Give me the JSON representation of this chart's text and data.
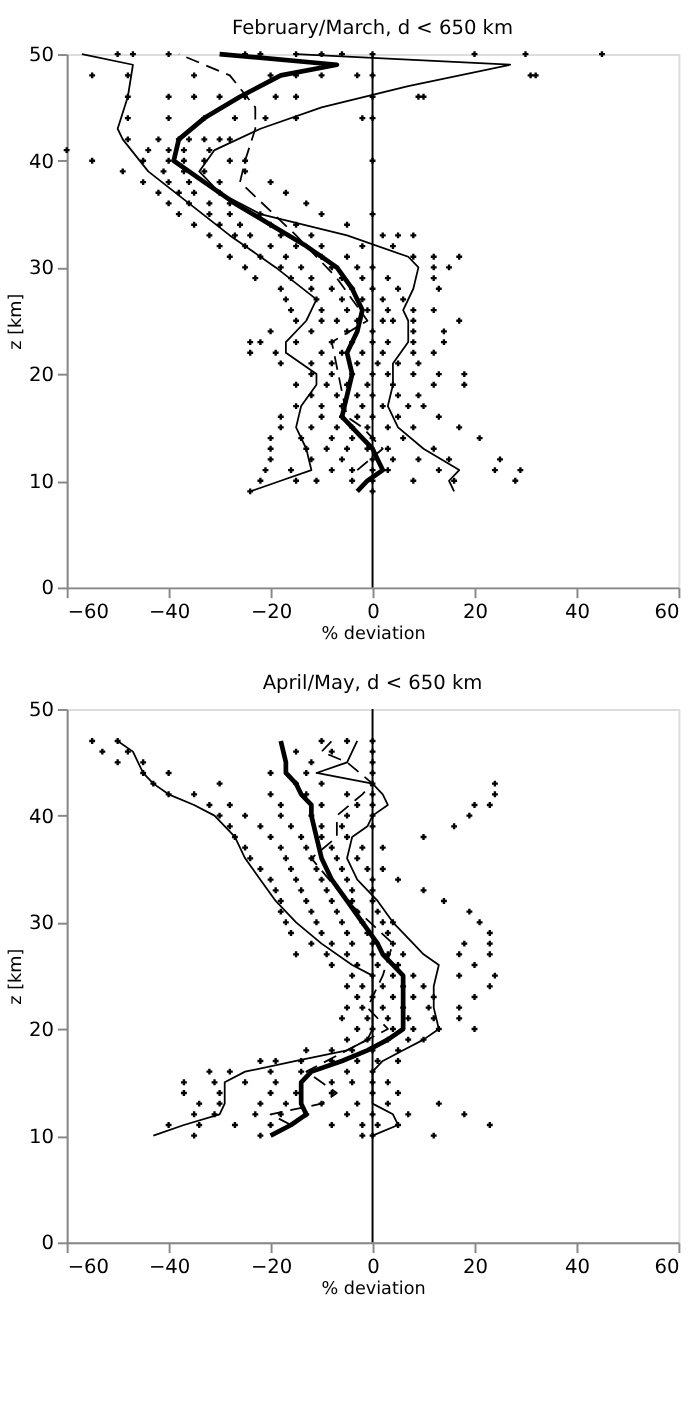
{
  "chart_data": [
    {
      "type": "line",
      "title": "February/March, d < 650 km",
      "xlabel": "% deviation",
      "ylabel": "z [km]",
      "xlim": [
        -60,
        60
      ],
      "ylim": [
        0,
        50
      ],
      "xticks": [
        -60,
        -40,
        -20,
        0,
        20,
        40,
        60
      ],
      "yticks": [
        0,
        10,
        20,
        30,
        40,
        50
      ],
      "grid": false,
      "ref_lines": [
        {
          "axis": "x",
          "value": 0,
          "color": "#000000",
          "line_style": "solid"
        }
      ],
      "series": [
        {
          "type": "scatter",
          "marker": "cross",
          "color": "#000000",
          "x": [
            -50,
            -47,
            -40,
            -25,
            -22,
            -15,
            -10,
            -6,
            0,
            20,
            30,
            45,
            -55,
            -48,
            -35,
            -20,
            -15,
            -10,
            -3,
            0,
            31,
            32,
            -48,
            -40,
            -35,
            -30,
            -25,
            -19,
            -15,
            0,
            9,
            10,
            -48,
            -40,
            -33,
            -27,
            -21,
            -15,
            -2,
            0,
            -48,
            -42,
            -38,
            -36,
            -33,
            -30,
            -28,
            -60,
            -44,
            -40,
            -37,
            -32,
            -55,
            -45,
            -40,
            -37,
            -33,
            -28,
            -25,
            0,
            -49,
            -41,
            -37,
            -33,
            -25,
            -45,
            -40,
            -36,
            -30,
            -20,
            -42,
            -38,
            -35,
            -30,
            -17,
            -40,
            -36,
            -32,
            -28,
            -13,
            -38,
            -32,
            -28,
            -22,
            -10,
            0,
            -35,
            -30,
            -26,
            -20,
            -15,
            -5,
            -32,
            -27,
            -24,
            -18,
            -12,
            2,
            5,
            8,
            -30,
            -25,
            -20,
            -15,
            -10,
            -2,
            4,
            -28,
            -22,
            -17,
            -10,
            -5,
            8,
            12,
            17,
            -25,
            -18,
            -14,
            -8,
            -3,
            0,
            12,
            15,
            -23,
            -16,
            -12,
            -6,
            -2,
            3,
            12,
            -18,
            -12,
            -8,
            -4,
            0,
            5,
            13,
            -17,
            -11,
            -6,
            -2,
            2,
            6,
            -16,
            -10,
            -5,
            -1,
            3,
            8,
            12,
            -15,
            -10,
            -7,
            -3,
            2,
            4,
            8,
            17,
            -20,
            -12,
            -5,
            0,
            8,
            14,
            -24,
            -22,
            -15,
            -8,
            -4,
            0,
            3,
            8,
            14,
            -24,
            -19,
            -10,
            -6,
            -2,
            2,
            8,
            12,
            -18,
            -12,
            -8,
            -3,
            1,
            5,
            9,
            -12,
            -8,
            -4,
            0,
            3,
            8,
            13,
            18,
            -15,
            -9,
            -5,
            -1,
            4,
            12,
            18,
            -12,
            -7,
            -3,
            0,
            5,
            9,
            -15,
            -10,
            -6,
            -2,
            2,
            7,
            10,
            -18,
            -10,
            -6,
            -3,
            0,
            5,
            13,
            -18,
            -12,
            -7,
            -4,
            -1,
            3,
            8,
            17,
            -20,
            -14,
            -8,
            -4,
            0,
            6,
            21,
            -20,
            -13,
            -9,
            -5,
            -1,
            3,
            12,
            -20,
            -12,
            -6,
            0,
            4,
            9,
            15,
            25,
            -21,
            -16,
            -8,
            -4,
            0,
            3,
            13,
            24,
            29,
            -22,
            -15,
            -11,
            -4,
            0,
            8,
            16,
            28,
            -24,
            0
          ],
          "values": [
            50,
            50,
            50,
            50,
            50,
            50,
            50,
            50,
            50,
            50,
            50,
            50,
            48,
            48,
            48,
            48,
            48,
            48,
            48,
            48,
            48,
            48,
            46,
            46,
            46,
            46,
            46,
            46,
            46,
            46,
            46,
            46,
            44,
            44,
            44,
            44,
            44,
            44,
            44,
            44,
            42,
            42,
            42,
            42,
            42,
            42,
            42,
            41,
            41,
            41,
            41,
            41,
            40,
            40,
            40,
            40,
            40,
            40,
            40,
            40,
            39,
            39,
            39,
            39,
            39,
            38,
            38,
            38,
            38,
            38,
            37,
            37,
            37,
            37,
            37,
            36,
            36,
            36,
            36,
            36,
            35,
            35,
            35,
            35,
            35,
            35,
            34,
            34,
            34,
            34,
            34,
            34,
            33,
            33,
            33,
            33,
            33,
            33,
            33,
            33,
            32,
            32,
            32,
            32,
            32,
            32,
            32,
            31,
            31,
            31,
            31,
            31,
            31,
            31,
            31,
            30,
            30,
            30,
            30,
            30,
            30,
            30,
            30,
            29,
            29,
            29,
            29,
            29,
            29,
            29,
            28,
            28,
            28,
            28,
            28,
            28,
            28,
            27,
            27,
            27,
            27,
            27,
            27,
            26,
            26,
            26,
            26,
            26,
            26,
            26,
            25,
            25,
            25,
            25,
            25,
            25,
            25,
            25,
            24,
            24,
            24,
            24,
            24,
            24,
            23,
            23,
            23,
            23,
            23,
            23,
            23,
            23,
            23,
            22,
            22,
            22,
            22,
            22,
            22,
            22,
            22,
            21,
            21,
            21,
            21,
            21,
            21,
            21,
            20,
            20,
            20,
            20,
            20,
            20,
            20,
            20,
            19,
            19,
            19,
            19,
            19,
            19,
            19,
            18,
            18,
            18,
            18,
            18,
            18,
            17,
            17,
            17,
            17,
            17,
            17,
            17,
            16,
            16,
            16,
            16,
            16,
            16,
            16,
            15,
            15,
            15,
            15,
            15,
            15,
            15,
            15,
            14,
            14,
            14,
            14,
            14,
            14,
            14,
            13,
            13,
            13,
            13,
            13,
            13,
            13,
            12,
            12,
            12,
            12,
            12,
            12,
            12,
            12,
            11,
            11,
            11,
            11,
            11,
            11,
            11,
            11,
            11,
            10,
            10,
            10,
            10,
            10,
            10,
            10,
            10,
            9,
            9
          ]
        },
        {
          "type": "line",
          "line_style": "solid",
          "color": "#000000",
          "x": [
            -3,
            -1,
            2,
            1,
            0,
            -2,
            -4,
            -6,
            -5,
            -4,
            -5,
            -3,
            -2,
            -3,
            -4,
            -7,
            -13,
            -20,
            -27,
            -33,
            -39,
            -38,
            -33,
            -26,
            -18,
            -7,
            -30
          ],
          "values": [
            9,
            10,
            11,
            12,
            13,
            14,
            15,
            16,
            18,
            20,
            22,
            24,
            26,
            27,
            28,
            30,
            32,
            34,
            36,
            38,
            40,
            42,
            44,
            46,
            48,
            49,
            50
          ]
        },
        {
          "type": "line",
          "line_style": "solid",
          "color": "#000000",
          "x": [
            -24,
            -18,
            -12,
            -13,
            -15,
            -14,
            -11,
            -11,
            -17,
            -17,
            -13,
            -12,
            -11,
            -19,
            -28,
            -36,
            -44,
            -49,
            -50,
            -48,
            -47,
            -57
          ],
          "values": [
            9,
            10,
            11,
            13,
            15,
            17,
            19,
            20,
            22,
            23,
            25,
            26,
            27,
            30,
            33,
            36,
            39,
            42,
            43,
            46,
            49,
            50
          ]
        },
        {
          "type": "line",
          "line_style": "solid",
          "color": "#000000",
          "x": [
            16,
            15,
            17,
            10,
            5,
            3,
            4,
            4,
            7,
            7,
            6,
            8,
            9,
            7,
            -5,
            -22,
            -30,
            -34,
            -31,
            -22,
            -10,
            7,
            27,
            -15
          ],
          "values": [
            9,
            10,
            11,
            13,
            15,
            17,
            19,
            21,
            23,
            25,
            26,
            28,
            30,
            31,
            33,
            35,
            37,
            39,
            41,
            43,
            45,
            47,
            49,
            50
          ]
        },
        {
          "type": "line",
          "line_style": "dashed",
          "color": "#000000",
          "x": [
            -3,
            2,
            -2,
            -5,
            -8,
            -1,
            -7,
            -15,
            -26,
            -25,
            -23,
            -23,
            -28,
            -38
          ],
          "values": [
            11,
            13,
            15,
            16,
            23,
            25,
            29,
            33,
            38,
            40,
            43,
            45,
            48,
            50
          ]
        }
      ]
    },
    {
      "type": "line",
      "title": "April/May, d < 650 km",
      "xlabel": "% deviation",
      "ylabel": "z [km]",
      "xlim": [
        -60,
        60
      ],
      "ylim": [
        0,
        50
      ],
      "xticks": [
        -60,
        -40,
        -20,
        0,
        20,
        40,
        60
      ],
      "yticks": [
        0,
        10,
        20,
        30,
        40,
        50
      ],
      "grid": false,
      "ref_lines": [
        {
          "axis": "x",
          "value": 0,
          "color": "#000000",
          "line_style": "solid"
        }
      ],
      "series": [
        {
          "type": "scatter",
          "marker": "cross",
          "color": "#000000",
          "x": [
            -55,
            -50,
            -10,
            -5,
            0,
            -53,
            -48,
            -15,
            -8,
            0,
            -50,
            -45,
            -12,
            0,
            -45,
            -40,
            -20,
            -13,
            0,
            -43,
            -30,
            -15,
            -10,
            0,
            24,
            -40,
            -35,
            -20,
            -13,
            -5,
            0,
            24,
            -32,
            -28,
            -18,
            -10,
            -3,
            0,
            20,
            23,
            -30,
            -25,
            -18,
            -12,
            -5,
            0,
            19,
            -28,
            -22,
            -16,
            -10,
            -6,
            0,
            16,
            -27,
            -20,
            -14,
            -10,
            -5,
            10,
            -25,
            -18,
            -13,
            -8,
            -2,
            2,
            -24,
            -17,
            -12,
            -7,
            -3,
            -22,
            -16,
            -11,
            -6,
            -1,
            2,
            -20,
            -15,
            -10,
            -5,
            0,
            5,
            -19,
            -14,
            -9,
            -4,
            0,
            10,
            -18,
            -13,
            -8,
            -4,
            0,
            14,
            -18,
            -12,
            -7,
            -3,
            1,
            19,
            -17,
            -11,
            -6,
            -2,
            2,
            4,
            21,
            -16,
            -10,
            -5,
            -1,
            3,
            23,
            -12,
            -8,
            -4,
            0,
            4,
            18,
            23,
            -15,
            -9,
            -5,
            0,
            3,
            6,
            17,
            23,
            -8,
            -3,
            1,
            5,
            20,
            -4,
            0,
            4,
            8,
            17,
            24,
            -5,
            -2,
            2,
            6,
            10,
            23,
            -3,
            0,
            4,
            8,
            12,
            20,
            -5,
            -2,
            2,
            6,
            11,
            17,
            -6,
            -1,
            3,
            7,
            12,
            17,
            -3,
            0,
            4,
            8,
            13,
            20,
            -5,
            -1,
            3,
            7,
            10,
            -13,
            -8,
            -4,
            0,
            5,
            -22,
            -19,
            -14,
            -8,
            -3,
            1,
            5,
            -32,
            -28,
            -20,
            -14,
            -5,
            0,
            -37,
            -31,
            -25,
            -19,
            -8,
            -4,
            0,
            3,
            -37,
            -30,
            -20,
            -15,
            -8,
            0,
            5,
            -34,
            -30,
            -22,
            -17,
            -10,
            -3,
            3,
            13,
            -35,
            -31,
            -23,
            -18,
            -13,
            -5,
            0,
            7,
            18,
            -40,
            -34,
            -27,
            -20,
            -8,
            -2,
            1,
            5,
            23,
            -35,
            -22,
            -2,
            0,
            12
          ],
          "values": [
            47,
            47,
            47,
            47,
            47,
            46,
            46,
            46,
            46,
            46,
            45,
            45,
            45,
            45,
            44,
            44,
            44,
            44,
            44,
            43,
            43,
            43,
            43,
            43,
            43,
            42,
            42,
            42,
            42,
            42,
            42,
            42,
            41,
            41,
            41,
            41,
            41,
            41,
            41,
            41,
            40,
            40,
            40,
            40,
            40,
            40,
            40,
            39,
            39,
            39,
            39,
            39,
            39,
            39,
            38,
            38,
            38,
            38,
            38,
            38,
            37,
            37,
            37,
            37,
            37,
            37,
            36,
            36,
            36,
            36,
            36,
            35,
            35,
            35,
            35,
            35,
            35,
            34,
            34,
            34,
            34,
            34,
            34,
            33,
            33,
            33,
            33,
            33,
            33,
            32,
            32,
            32,
            32,
            32,
            32,
            31,
            31,
            31,
            31,
            31,
            31,
            30,
            30,
            30,
            30,
            30,
            30,
            30,
            29,
            29,
            29,
            29,
            29,
            29,
            28,
            28,
            28,
            28,
            28,
            28,
            28,
            27,
            27,
            27,
            27,
            27,
            27,
            27,
            27,
            26,
            26,
            26,
            26,
            26,
            25,
            25,
            25,
            25,
            25,
            25,
            24,
            24,
            24,
            24,
            24,
            24,
            23,
            23,
            23,
            23,
            23,
            23,
            22,
            22,
            22,
            22,
            22,
            22,
            21,
            21,
            21,
            21,
            21,
            21,
            20,
            20,
            20,
            20,
            20,
            20,
            19,
            19,
            19,
            19,
            19,
            18,
            18,
            18,
            18,
            18,
            17,
            17,
            17,
            17,
            17,
            17,
            17,
            16,
            16,
            16,
            16,
            16,
            16,
            15,
            15,
            15,
            15,
            15,
            15,
            15,
            15,
            14,
            14,
            14,
            14,
            14,
            14,
            14,
            13,
            13,
            13,
            13,
            13,
            13,
            13,
            13,
            12,
            12,
            12,
            12,
            12,
            12,
            12,
            12,
            12,
            11,
            11,
            11,
            11,
            11,
            11,
            11,
            11,
            11,
            10,
            10,
            10,
            10,
            10
          ]
        },
        {
          "type": "line",
          "line_style": "solid",
          "color": "#000000",
          "x": [
            -20,
            -16,
            -13,
            -14,
            -14,
            -14,
            -12,
            -6,
            -1,
            3,
            6,
            6,
            6,
            6,
            4,
            2,
            1,
            -2,
            -5,
            -8,
            -10,
            -11,
            -12,
            -12,
            -14,
            -15,
            -17,
            -17,
            -18
          ],
          "values": [
            10,
            11,
            12,
            13,
            14,
            15,
            16,
            17,
            18,
            19,
            20,
            22,
            24,
            25,
            26,
            27,
            28,
            30,
            32,
            34,
            36,
            38,
            40,
            41,
            42,
            43,
            44,
            45,
            47
          ]
        },
        {
          "type": "line",
          "line_style": "solid",
          "color": "#000000",
          "x": [
            -43,
            -37,
            -30,
            -29,
            -29,
            -25,
            -15,
            -5,
            -1,
            0,
            0,
            0,
            0,
            -4,
            -10,
            -15,
            -19,
            -22,
            -25,
            -27,
            -31,
            -35,
            -40,
            -43,
            -45,
            -47,
            -50
          ],
          "values": [
            10,
            11,
            12,
            13,
            15,
            16,
            17,
            18,
            19,
            20,
            22,
            24,
            25,
            26,
            28,
            30,
            32,
            34,
            36,
            38,
            40,
            41,
            42,
            43,
            44,
            46,
            47
          ]
        },
        {
          "type": "line",
          "line_style": "solid",
          "color": "#000000",
          "x": [
            0,
            5,
            4,
            0,
            0,
            0,
            0,
            2,
            6,
            10,
            13,
            12,
            12,
            13,
            10,
            8,
            4,
            1,
            -3,
            -5,
            -4,
            -1,
            0,
            3,
            2,
            0,
            -11,
            -5,
            -3
          ],
          "values": [
            10,
            11,
            12,
            13,
            14,
            15,
            16,
            17,
            18,
            19,
            20,
            22,
            24,
            26,
            27,
            28,
            30,
            32,
            34,
            36,
            38,
            39,
            40,
            41,
            42,
            43,
            44,
            45,
            47
          ]
        },
        {
          "type": "line",
          "line_style": "dashed",
          "color": "#000000",
          "x": [
            -16,
            -20,
            -10,
            -7,
            -10,
            -13,
            3,
            -1,
            2,
            4,
            -5,
            -12,
            -7,
            -7,
            -2,
            0,
            -5,
            -10,
            -8
          ],
          "values": [
            11,
            12,
            13,
            14,
            15,
            16,
            20,
            22,
            25,
            28,
            32,
            36,
            38,
            40,
            42,
            43,
            45,
            46,
            47
          ]
        }
      ]
    }
  ]
}
